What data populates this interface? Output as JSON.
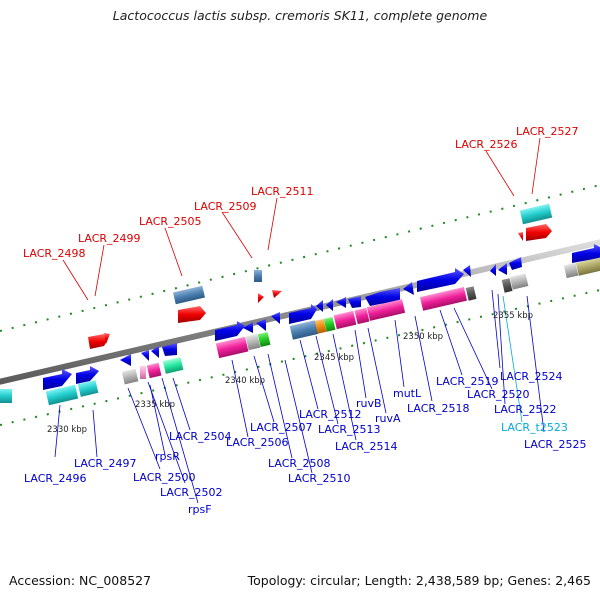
{
  "title": "Lactococcus lactis subsp. cremoris SK11, complete genome",
  "footer": {
    "accession": "Accession: NC_008527",
    "summary": "Topology: circular; Length: 2,438,589 bp; Genes: 2,465"
  },
  "colors": {
    "label_top": "#dd0000",
    "label_bottom": "#0000cc",
    "label_trna": "#00aadd",
    "backbone": "#8c8c8c",
    "tick": "#1e8a1e"
  },
  "kbp_labels": [
    "2330 kbp",
    "2335 kbp",
    "2340 kbp",
    "2345 kbp",
    "2350 kbp",
    "2355 kbp"
  ],
  "genes_top": [
    "LACR_2498",
    "LACR_2499",
    "LACR_2505",
    "LACR_2509",
    "LACR_2511",
    "LACR_2526",
    "LACR_2527"
  ],
  "genes_bottom": [
    "LACR_2496",
    "LACR_2497",
    "LACR_2500",
    "rpsR",
    "LACR_2502",
    "rpsF",
    "LACR_2504",
    "LACR_2506",
    "LACR_2507",
    "LACR_2508",
    "LACR_2510",
    "LACR_2512",
    "LACR_2513",
    "LACR_2514",
    "ruvB",
    "ruvA",
    "mutL",
    "LACR_2518",
    "LACR_2519",
    "LACR_2520",
    "LACR_2522",
    "LACR_t2523",
    "LACR_2524",
    "LACR_2525"
  ]
}
